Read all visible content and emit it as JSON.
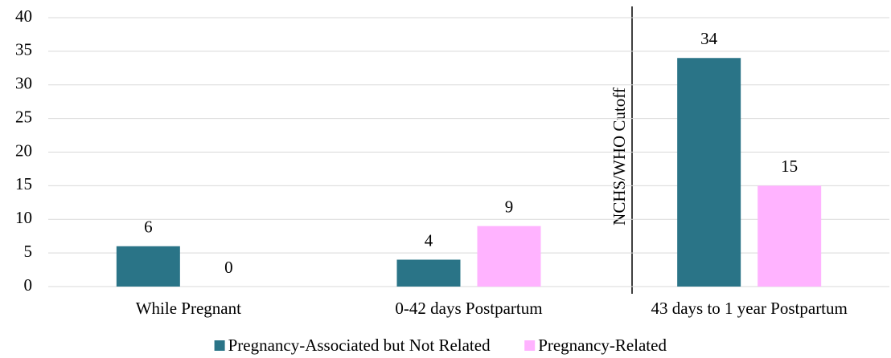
{
  "chart_data": {
    "type": "bar",
    "categories": [
      "While Pregnant",
      "0-42 days Postpartum",
      "43 days to 1 year Postpartum"
    ],
    "series": [
      {
        "name": "Pregnancy-Associated but Not Related",
        "color": "#2a7487",
        "values": [
          6,
          4,
          34
        ]
      },
      {
        "name": "Pregnancy-Related",
        "color": "#ffb3ff",
        "values": [
          0,
          9,
          15
        ]
      }
    ],
    "ylim": [
      0,
      40
    ],
    "yticks": [
      0,
      5,
      10,
      15,
      20,
      25,
      30,
      35,
      40
    ],
    "grid": true,
    "annotation": "NCHS/WHO Cutoff",
    "legend": "bottom"
  }
}
